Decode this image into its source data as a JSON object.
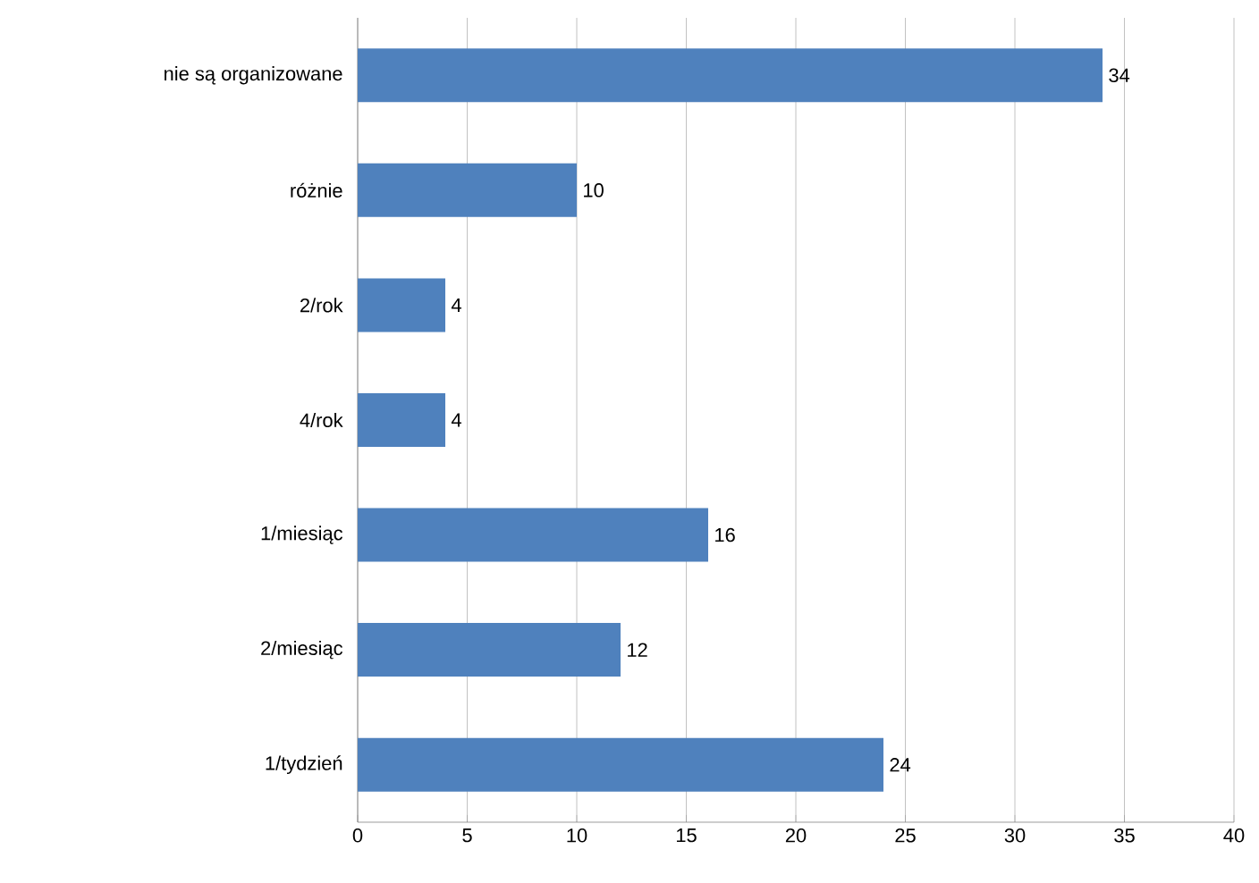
{
  "chart_data": {
    "type": "bar",
    "orientation": "horizontal",
    "categories": [
      "nie są organizowane",
      "różnie",
      "2/rok",
      "4/rok",
      "1/miesiąc",
      "2/miesiąc",
      "1/tydzień"
    ],
    "values": [
      34,
      10,
      4,
      4,
      16,
      12,
      24
    ],
    "color": "#4f81bd",
    "xlim": [
      0,
      40
    ],
    "xticks": [
      0,
      5,
      10,
      15,
      20,
      25,
      30,
      35,
      40
    ],
    "grid": "x",
    "data_labels": true
  }
}
